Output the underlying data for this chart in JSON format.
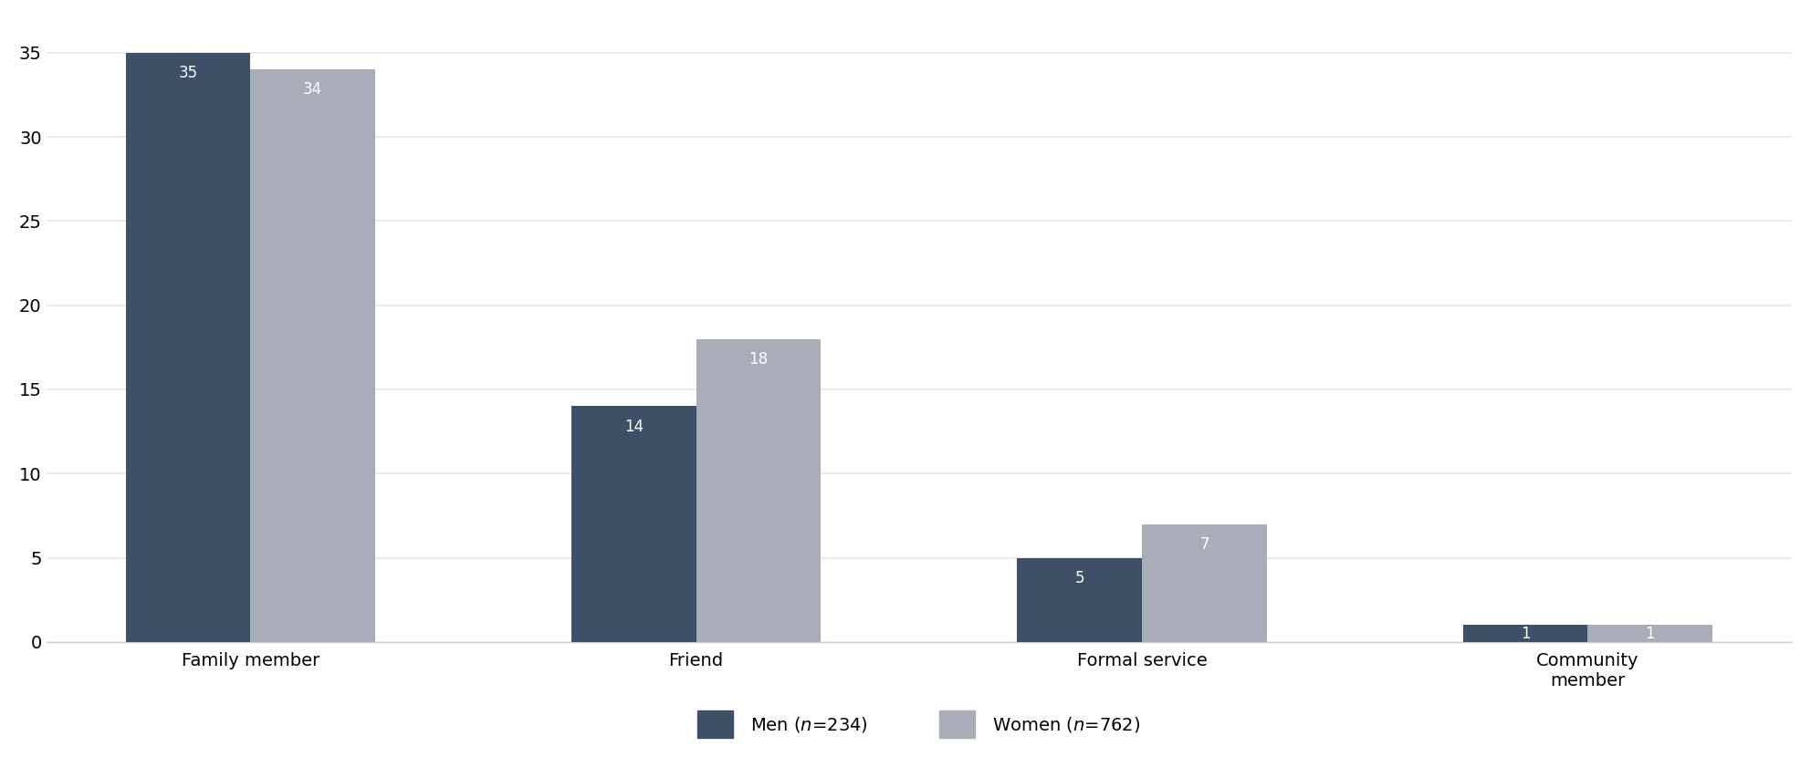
{
  "categories": [
    "Family member",
    "Friend",
    "Formal service",
    "Community\nmember"
  ],
  "men_values": [
    35,
    14,
    5,
    1
  ],
  "women_values": [
    34,
    18,
    7,
    1
  ],
  "men_color": "#3d5068",
  "women_color": "#a8adb8",
  "ylim": [
    0,
    37
  ],
  "yticks": [
    0,
    5,
    10,
    15,
    20,
    25,
    30,
    35
  ],
  "bar_width": 0.28,
  "background_color": "#ffffff",
  "grid_color": "#e8e8e8",
  "tick_fontsize": 14,
  "legend_fontsize": 14,
  "value_fontsize": 12
}
